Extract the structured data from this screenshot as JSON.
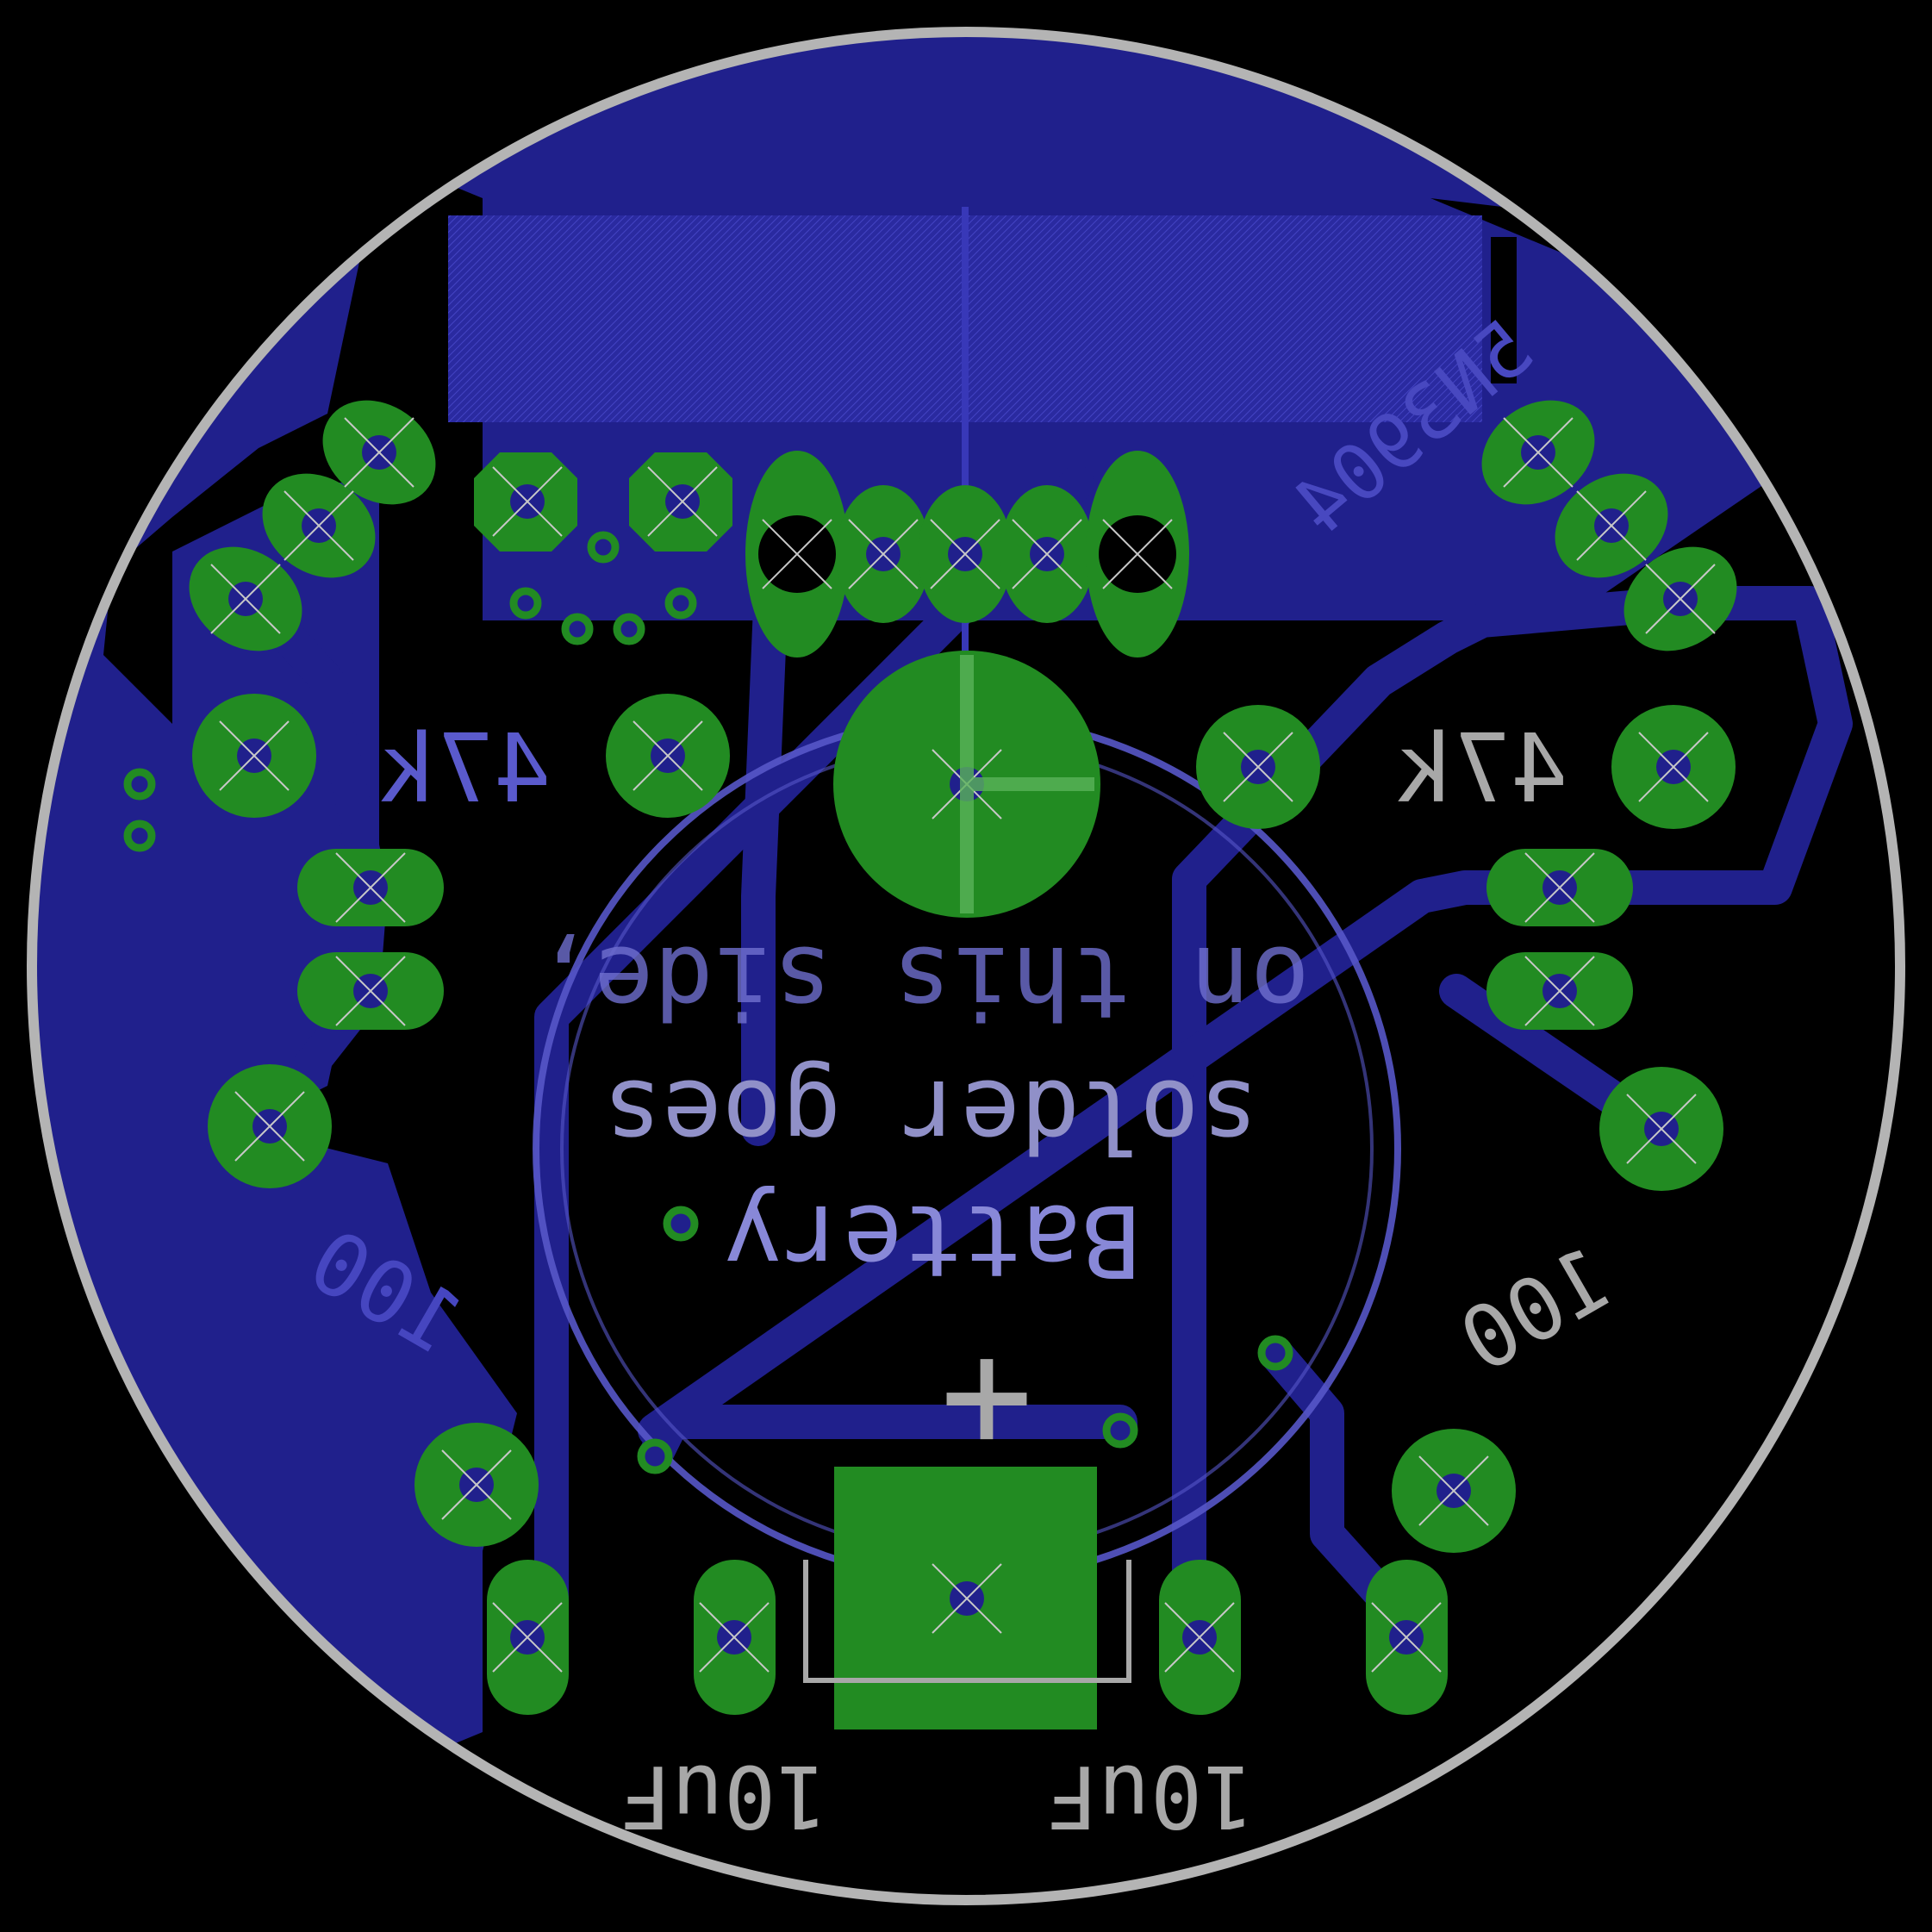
{
  "colors": {
    "background": "#000000",
    "copper_bottom": "#20208c",
    "copper_bottom_hatch": "#3434b4",
    "pad": "#228b22",
    "silkscreen": "#a8a8a8",
    "board_outline": "#b4b4b4",
    "via_hole": "#20208c",
    "drill": "#000000"
  },
  "labels": {
    "r_left_value": "47k",
    "r_right_value": "47k",
    "c_left_value": "100",
    "c_right_value": "100",
    "c_bottom_left_value": "10uF",
    "c_bottom_right_value": "10uF",
    "ic_part": "5N3904",
    "battery_line1": "on this side,",
    "battery_line2": "solder goes",
    "battery_line3": "Battery",
    "battery_polarity": "+"
  },
  "icons": {
    "pad_cross": "x-cross-icon",
    "battery_outline": "circle-outline-icon"
  }
}
